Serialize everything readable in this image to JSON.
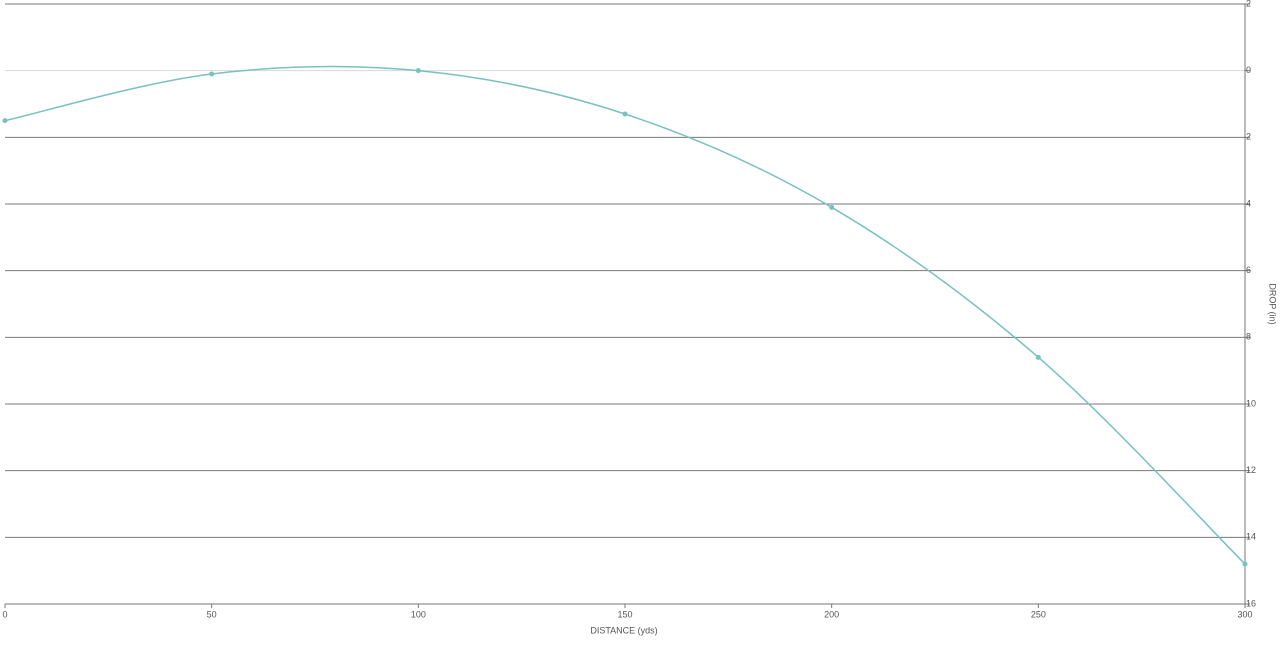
{
  "chart_data": {
    "type": "line",
    "x_label": "DISTANCE (yds)",
    "y_label": "DROP (in)",
    "x": [
      0,
      50,
      100,
      150,
      200,
      250,
      300
    ],
    "series": [
      {
        "name": "Drop",
        "color": "#79c0c1",
        "values": [
          1.5,
          0.1,
          0,
          1.3,
          4.1,
          8.6,
          14.8
        ]
      }
    ],
    "xlim": [
      0,
      300
    ],
    "xticks": [
      0,
      50,
      100,
      150,
      200,
      250,
      300
    ],
    "ylim": [
      16,
      -2
    ],
    "yticks": [
      {
        "value": -2,
        "label": "2"
      },
      0,
      2,
      4,
      6,
      8,
      10,
      12,
      14,
      16
    ],
    "grid": true
  }
}
